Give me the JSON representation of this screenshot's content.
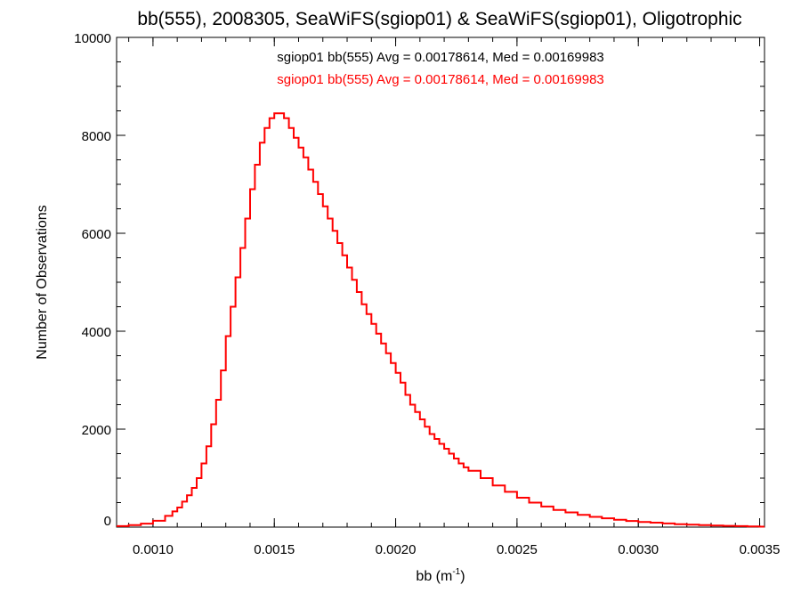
{
  "chart_data": {
    "type": "step",
    "title": "bb(555), 2008305, SeaWiFS(sgiop01) & SeaWiFS(sgiop01), Oligotrophic",
    "xlabel": "bb (m",
    "xlabel_sup": "-1",
    "xlabel_close": ")",
    "ylabel": "Number of Observations",
    "xlim": [
      0.00085,
      0.00352
    ],
    "ylim": [
      0,
      10000
    ],
    "x_ticks": [
      0.001,
      0.0015,
      0.002,
      0.0025,
      0.003,
      0.0035
    ],
    "x_tick_labels": [
      "0.0010",
      "0.0015",
      "0.0020",
      "0.0025",
      "0.0030",
      "0.0035"
    ],
    "y_ticks": [
      0,
      2000,
      4000,
      6000,
      8000,
      10000
    ],
    "y_tick_labels": [
      "0",
      "2000",
      "4000",
      "6000",
      "8000",
      "10000"
    ],
    "grid": false,
    "legend": "top-center",
    "annotations": [
      {
        "text": "sgiop01 bb(555) Avg = 0.00178614, Med = 0.00169983",
        "color": "#000000"
      },
      {
        "text": "sgiop01 bb(555) Avg = 0.00178614, Med = 0.00169983",
        "color": "#ff0000"
      }
    ],
    "series": [
      {
        "color": "#ff0000",
        "x": [
          0.00085,
          0.0009,
          0.00095,
          0.001,
          0.00105,
          0.00108,
          0.0011,
          0.00112,
          0.00114,
          0.00116,
          0.00118,
          0.0012,
          0.00122,
          0.00124,
          0.00126,
          0.00128,
          0.0013,
          0.00132,
          0.00134,
          0.00136,
          0.00138,
          0.0014,
          0.00142,
          0.00144,
          0.00146,
          0.00148,
          0.0015,
          0.00152,
          0.00154,
          0.00156,
          0.00158,
          0.0016,
          0.00162,
          0.00164,
          0.00166,
          0.00168,
          0.0017,
          0.00172,
          0.00174,
          0.00176,
          0.00178,
          0.0018,
          0.00182,
          0.00184,
          0.00186,
          0.00188,
          0.0019,
          0.00192,
          0.00194,
          0.00196,
          0.00198,
          0.002,
          0.00202,
          0.00204,
          0.00206,
          0.00208,
          0.0021,
          0.00212,
          0.00214,
          0.00216,
          0.00218,
          0.0022,
          0.00222,
          0.00224,
          0.00226,
          0.00228,
          0.0023,
          0.00235,
          0.0024,
          0.00245,
          0.0025,
          0.00255,
          0.0026,
          0.00265,
          0.0027,
          0.00275,
          0.0028,
          0.00285,
          0.0029,
          0.00295,
          0.003,
          0.00305,
          0.0031,
          0.00315,
          0.0032,
          0.00325,
          0.0033,
          0.00335,
          0.0034,
          0.00345,
          0.0035
        ],
        "y": [
          20,
          40,
          70,
          130,
          230,
          320,
          400,
          520,
          650,
          800,
          1000,
          1300,
          1650,
          2100,
          2600,
          3200,
          3900,
          4500,
          5100,
          5700,
          6300,
          6900,
          7400,
          7850,
          8150,
          8350,
          8450,
          8450,
          8350,
          8150,
          7950,
          7750,
          7550,
          7300,
          7050,
          6800,
          6550,
          6300,
          6050,
          5800,
          5550,
          5300,
          5050,
          4800,
          4550,
          4350,
          4150,
          3950,
          3750,
          3550,
          3350,
          3150,
          2950,
          2700,
          2500,
          2350,
          2200,
          2050,
          1900,
          1800,
          1700,
          1600,
          1500,
          1400,
          1300,
          1220,
          1150,
          1000,
          850,
          720,
          600,
          500,
          420,
          350,
          300,
          250,
          210,
          180,
          150,
          125,
          105,
          90,
          75,
          60,
          50,
          40,
          32,
          25,
          20,
          15,
          10
        ]
      }
    ]
  }
}
